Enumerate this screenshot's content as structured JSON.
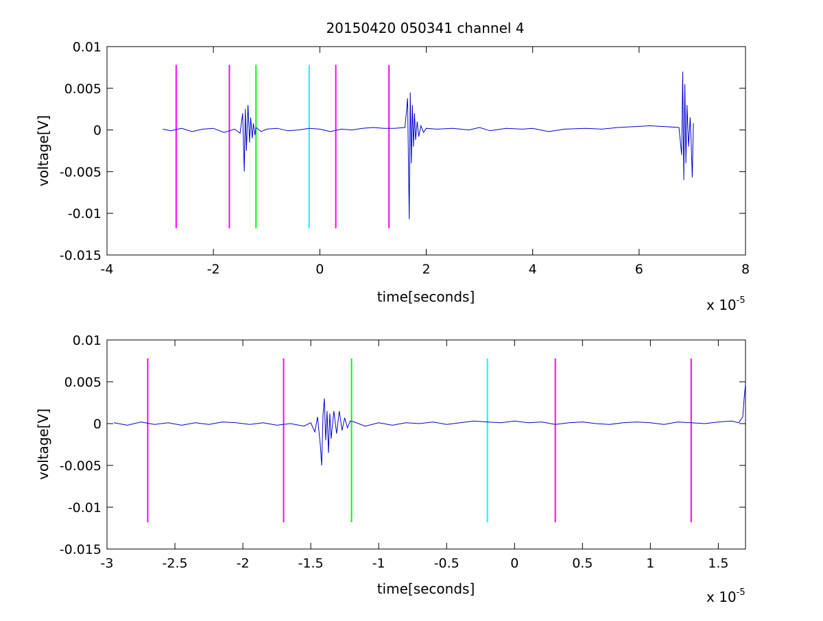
{
  "figure": {
    "title": "20150420 050341 channel 4",
    "background": "#ffffff"
  },
  "chart_data": [
    {
      "type": "line",
      "title": "20150420 050341 channel 4",
      "xlabel": "time[seconds]",
      "ylabel": "voltage[V]",
      "x_exponent_label": "x 10",
      "x_exponent_power": "-5",
      "xlim": [
        -4,
        8
      ],
      "ylim": [
        -0.015,
        0.01
      ],
      "xticks": [
        -4,
        -2,
        0,
        2,
        4,
        6,
        8
      ],
      "xtick_labels": [
        "-4",
        "-2",
        "0",
        "2",
        "4",
        "6",
        "8"
      ],
      "yticks": [
        -0.015,
        -0.01,
        -0.005,
        0,
        0.005,
        0.01
      ],
      "ytick_labels": [
        "-0.015",
        "-0.01",
        "-0.005",
        "0",
        "0.005",
        "0.01"
      ],
      "grid": false,
      "waveform": {
        "color": "#0000cc",
        "x": [
          -2.95,
          -2.8,
          -2.6,
          -2.4,
          -2.2,
          -2.0,
          -1.8,
          -1.6,
          -1.5,
          -1.45,
          -1.42,
          -1.4,
          -1.38,
          -1.35,
          -1.32,
          -1.3,
          -1.27,
          -1.25,
          -1.22,
          -1.2,
          -1.1,
          -1.0,
          -0.8,
          -0.6,
          -0.4,
          -0.2,
          0.0,
          0.2,
          0.4,
          0.6,
          0.8,
          1.0,
          1.2,
          1.4,
          1.6,
          1.65,
          1.68,
          1.7,
          1.72,
          1.74,
          1.76,
          1.78,
          1.8,
          1.83,
          1.86,
          1.9,
          1.95,
          2.0,
          2.2,
          2.5,
          2.8,
          3.0,
          3.2,
          3.5,
          3.8,
          4.0,
          4.3,
          4.6,
          5.0,
          5.3,
          5.6,
          5.9,
          6.2,
          6.5,
          6.75,
          6.8,
          6.82,
          6.84,
          6.86,
          6.88,
          6.9,
          6.93,
          6.96,
          6.98,
          7.0,
          7.02
        ],
        "y": [
          0.0001,
          -0.0001,
          0.0002,
          -0.0002,
          0.0001,
          0.0002,
          -0.0003,
          0.0001,
          -0.0004,
          0.002,
          -0.005,
          0.0025,
          -0.0025,
          0.003,
          -0.0015,
          0.0015,
          -0.001,
          0.0008,
          -0.0006,
          0.0003,
          -0.0002,
          0.0001,
          0.0002,
          -0.0001,
          0.0,
          0.0002,
          0.0001,
          -0.0002,
          0.0001,
          0.0,
          0.0002,
          0.0003,
          0.0002,
          0.0002,
          0.0003,
          0.0038,
          -0.0107,
          0.0045,
          -0.004,
          0.003,
          -0.002,
          0.002,
          -0.0012,
          0.001,
          -0.0008,
          0.0005,
          -0.0003,
          0.0002,
          0.0001,
          0.0002,
          0.0,
          0.0003,
          -0.0001,
          0.0002,
          0.0001,
          0.0002,
          -0.0002,
          0.0001,
          0.0002,
          0.0001,
          0.0003,
          0.0004,
          0.0005,
          0.0004,
          0.0003,
          -0.003,
          0.007,
          -0.006,
          0.0055,
          -0.004,
          0.003,
          -0.002,
          0.0015,
          -0.0018,
          -0.0057,
          0.0008
        ]
      },
      "markers": [
        {
          "x": -2.7,
          "color": "#ff00ff"
        },
        {
          "x": -1.7,
          "color": "#ff00ff"
        },
        {
          "x": -1.2,
          "color": "#00ff00"
        },
        {
          "x": -0.2,
          "color": "#00ffff"
        },
        {
          "x": 0.3,
          "color": "#ff00ff"
        },
        {
          "x": 1.3,
          "color": "#ff00ff"
        }
      ],
      "marker_ylim": [
        -0.0118,
        0.0078
      ]
    },
    {
      "type": "line",
      "title": "",
      "xlabel": "time[seconds]",
      "ylabel": "voltage[V]",
      "x_exponent_label": "x 10",
      "x_exponent_power": "-5",
      "xlim": [
        -3.0,
        1.7
      ],
      "ylim": [
        -0.015,
        0.01
      ],
      "xticks": [
        -3,
        -2.5,
        -2,
        -1.5,
        -1,
        -0.5,
        0,
        0.5,
        1,
        1.5
      ],
      "xtick_labels": [
        "-3",
        "-2.5",
        "-2",
        "-1.5",
        "-1",
        "-0.5",
        "0",
        "0.5",
        "1",
        "1.5"
      ],
      "yticks": [
        -0.015,
        -0.01,
        -0.005,
        0,
        0.005,
        0.01
      ],
      "ytick_labels": [
        "-0.015",
        "-0.01",
        "-0.005",
        "0",
        "0.005",
        "0.01"
      ],
      "grid": false,
      "waveform": {
        "color": "#0000cc",
        "x": [
          -2.95,
          -2.85,
          -2.75,
          -2.65,
          -2.55,
          -2.45,
          -2.35,
          -2.25,
          -2.15,
          -2.05,
          -1.95,
          -1.85,
          -1.75,
          -1.65,
          -1.55,
          -1.5,
          -1.47,
          -1.45,
          -1.43,
          -1.42,
          -1.41,
          -1.4,
          -1.39,
          -1.38,
          -1.37,
          -1.36,
          -1.35,
          -1.33,
          -1.31,
          -1.29,
          -1.27,
          -1.25,
          -1.23,
          -1.21,
          -1.18,
          -1.1,
          -1.0,
          -0.9,
          -0.8,
          -0.7,
          -0.6,
          -0.5,
          -0.4,
          -0.3,
          -0.2,
          -0.1,
          0.0,
          0.1,
          0.2,
          0.3,
          0.4,
          0.5,
          0.6,
          0.7,
          0.8,
          0.9,
          1.0,
          1.1,
          1.2,
          1.3,
          1.4,
          1.5,
          1.6,
          1.65,
          1.68,
          1.69,
          1.7
        ],
        "y": [
          0.0001,
          -0.0002,
          0.0002,
          -0.0001,
          0.0001,
          -0.0002,
          0.0001,
          -0.0001,
          0.0002,
          0.0001,
          -0.0001,
          0.0001,
          -0.0002,
          0.0,
          -0.0003,
          0.0001,
          -0.001,
          0.0008,
          -0.0025,
          -0.005,
          0.001,
          0.003,
          -0.002,
          0.0015,
          -0.0035,
          0.0012,
          -0.0018,
          0.0015,
          -0.0012,
          0.0015,
          -0.0008,
          0.0007,
          -0.0005,
          0.0003,
          0.0002,
          -0.0003,
          0.0001,
          -0.0002,
          0.0001,
          0.0,
          0.0002,
          -0.0001,
          0.0001,
          0.0003,
          0.0002,
          0.0001,
          0.0003,
          0.0001,
          0.0002,
          -0.0001,
          0.0001,
          0.0002,
          0.0,
          -0.0001,
          0.0001,
          0.0002,
          0.0001,
          -0.0001,
          0.0002,
          0.0001,
          0.0,
          0.0002,
          0.0003,
          0.0001,
          0.0008,
          0.003,
          0.0047
        ]
      },
      "markers": [
        {
          "x": -2.7,
          "color": "#ff00ff"
        },
        {
          "x": -1.7,
          "color": "#ff00ff"
        },
        {
          "x": -1.2,
          "color": "#00ff00"
        },
        {
          "x": -0.2,
          "color": "#00ffff"
        },
        {
          "x": 0.3,
          "color": "#ff00ff"
        },
        {
          "x": 1.3,
          "color": "#ff00ff"
        }
      ],
      "marker_ylim": [
        -0.0118,
        0.0078
      ]
    }
  ]
}
